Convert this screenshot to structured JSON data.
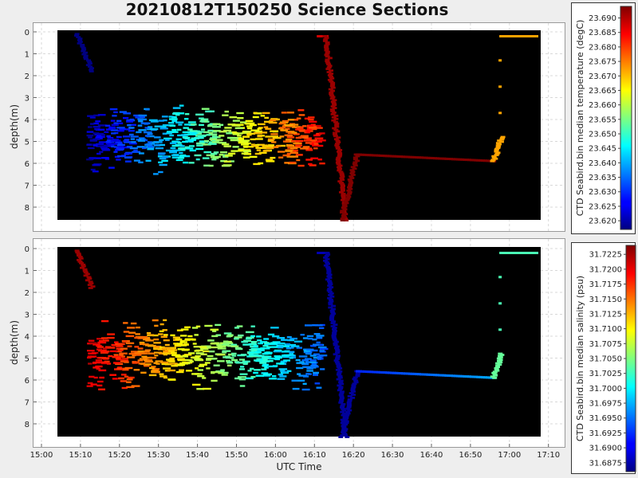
{
  "chart_data": [
    {
      "type": "scatter",
      "title": "20210812T150250 Science Sections",
      "xlabel": "",
      "ylabel": "depth(m)",
      "x_ticks": [
        "15:00",
        "15:10",
        "15:20",
        "15:30",
        "15:40",
        "15:50",
        "16:00",
        "16:10",
        "16:20",
        "16:30",
        "16:40",
        "16:50",
        "17:00",
        "17:10"
      ],
      "y_ticks": [
        "0",
        "1",
        "2",
        "3",
        "4",
        "5",
        "6",
        "7",
        "8"
      ],
      "ylim": [
        8.9,
        -0.3
      ],
      "y_inverted": true,
      "grid": true,
      "colormap": "jet",
      "colorbar": {
        "label": "CTD Seabird.bin median temperature (degC)",
        "ticks": [
          "23.690",
          "23.685",
          "23.680",
          "23.675",
          "23.670",
          "23.665",
          "23.660",
          "23.655",
          "23.650",
          "23.645",
          "23.640",
          "23.635",
          "23.630",
          "23.625",
          "23.620"
        ],
        "range": [
          23.617,
          23.694
        ]
      },
      "plot_background": "#000000",
      "data_window": {
        "x_start": "15:04",
        "x_end": "17:08",
        "depth_top": 0.0,
        "depth_bottom": 8.6
      },
      "series": [
        {
          "segment": "descent",
          "time": [
            "15:09",
            "15:13"
          ],
          "depth": [
            0.1,
            1.8
          ],
          "value": 23.617
        },
        {
          "segment": "yo-cloud",
          "time": [
            "15:12",
            "16:12"
          ],
          "depth": [
            3.0,
            6.6
          ],
          "value_start": 23.62,
          "value_end": 23.685
        },
        {
          "segment": "surface-leg",
          "time": [
            "16:11",
            "16:13"
          ],
          "depth": [
            0.2,
            0.2
          ],
          "value": 23.688
        },
        {
          "segment": "descent",
          "time": [
            "16:13",
            "16:18"
          ],
          "depth": [
            0.2,
            8.6
          ],
          "value": 23.692
        },
        {
          "segment": "ascent",
          "time": [
            "16:17",
            "16:21"
          ],
          "depth": [
            8.6,
            5.6
          ],
          "value": 23.694
        },
        {
          "segment": "tow",
          "time": [
            "16:21",
            "16:56"
          ],
          "depth": [
            5.6,
            5.9
          ],
          "value": 23.694
        },
        {
          "segment": "ascent",
          "time": [
            "16:56",
            "16:58"
          ],
          "depth": [
            5.9,
            4.8
          ],
          "value": 23.672
        },
        {
          "segment": "surface",
          "time": [
            "16:57",
            "17:07"
          ],
          "depth": [
            0.2,
            0.2
          ],
          "value": 23.672
        }
      ]
    },
    {
      "type": "scatter",
      "title": "",
      "xlabel": "UTC Time",
      "ylabel": "depth(m)",
      "x_ticks": [
        "15:00",
        "15:10",
        "15:20",
        "15:30",
        "15:40",
        "15:50",
        "16:00",
        "16:10",
        "16:20",
        "16:30",
        "16:40",
        "16:50",
        "17:00",
        "17:10"
      ],
      "y_ticks": [
        "0",
        "1",
        "2",
        "3",
        "4",
        "5",
        "6",
        "7",
        "8"
      ],
      "ylim": [
        8.9,
        -0.3
      ],
      "y_inverted": true,
      "grid": true,
      "colormap": "jet",
      "colorbar": {
        "label": "CTD Seabird.bin median salinity (psu)",
        "ticks": [
          "31.7225",
          "31.7200",
          "31.7175",
          "31.7150",
          "31.7125",
          "31.7100",
          "31.7075",
          "31.7050",
          "31.7025",
          "31.7000",
          "31.6975",
          "31.6950",
          "31.6925",
          "31.6900",
          "31.6875"
        ],
        "range": [
          31.686,
          31.724
        ]
      },
      "plot_background": "#000000",
      "data_window": {
        "x_start": "15:04",
        "x_end": "17:08",
        "depth_top": 0.0,
        "depth_bottom": 8.6
      },
      "series": [
        {
          "segment": "descent",
          "time": [
            "15:09",
            "15:13"
          ],
          "depth": [
            0.1,
            1.8
          ],
          "value": 31.723
        },
        {
          "segment": "yo-cloud",
          "time": [
            "15:12",
            "16:12"
          ],
          "depth": [
            3.0,
            6.6
          ],
          "value_start": 31.721,
          "value_end": 31.694
        },
        {
          "segment": "surface-leg",
          "time": [
            "16:11",
            "16:13"
          ],
          "depth": [
            0.2,
            0.2
          ],
          "value": 31.688
        },
        {
          "segment": "descent",
          "time": [
            "16:13",
            "16:18"
          ],
          "depth": [
            0.2,
            8.6
          ],
          "value": 31.687
        },
        {
          "segment": "ascent",
          "time": [
            "16:17",
            "16:21"
          ],
          "depth": [
            8.6,
            5.6
          ],
          "value": 31.687
        },
        {
          "segment": "tow",
          "time": [
            "16:21",
            "16:56"
          ],
          "depth": [
            5.6,
            5.9
          ],
          "value_start": 31.692,
          "value_end": 31.697
        },
        {
          "segment": "ascent",
          "time": [
            "16:56",
            "16:58"
          ],
          "depth": [
            5.9,
            4.8
          ],
          "value": 31.704
        },
        {
          "segment": "surface",
          "time": [
            "16:57",
            "17:07"
          ],
          "depth": [
            0.2,
            0.2
          ],
          "value": 31.703
        }
      ]
    }
  ]
}
